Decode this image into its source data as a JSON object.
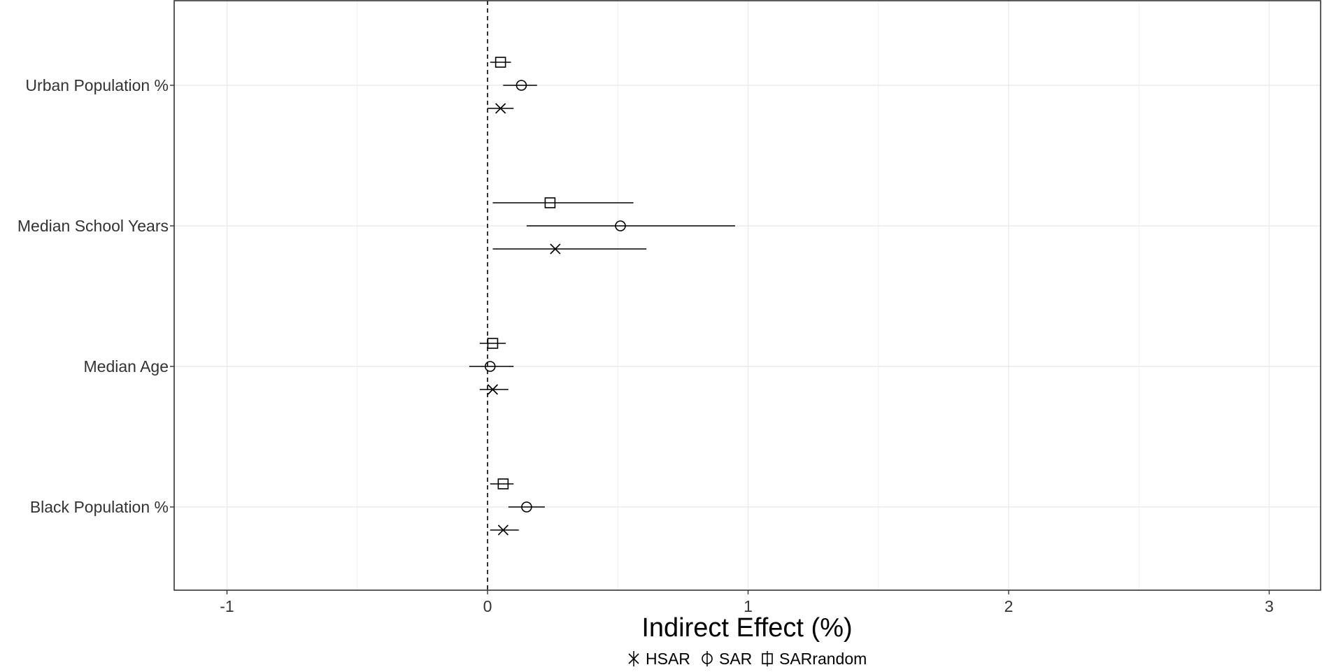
{
  "chart_data": {
    "type": "scatter",
    "subtype": "forest-plot",
    "xlabel": "Indirect Effect (%)",
    "ylabel": "",
    "xlim": [
      -1.2,
      3.2
    ],
    "x_ticks": [
      -1,
      0,
      1,
      2,
      3
    ],
    "x_tick_labels": [
      "-1",
      "0",
      "1",
      "2",
      "3"
    ],
    "grid": true,
    "reference_line": 0,
    "legend_position": "bottom",
    "categories": [
      "Urban Population %",
      "Median School Years",
      "Median Age",
      "Black Population %"
    ],
    "series": [
      {
        "name": "HSAR",
        "marker": "cross",
        "points": [
          {
            "category": "Urban Population %",
            "estimate": 0.05,
            "lower": 0.0,
            "upper": 0.1
          },
          {
            "category": "Median School Years",
            "estimate": 0.26,
            "lower": 0.02,
            "upper": 0.61
          },
          {
            "category": "Median Age",
            "estimate": 0.02,
            "lower": -0.03,
            "upper": 0.08
          },
          {
            "category": "Black Population %",
            "estimate": 0.06,
            "lower": 0.01,
            "upper": 0.12
          }
        ]
      },
      {
        "name": "SAR",
        "marker": "circle",
        "points": [
          {
            "category": "Urban Population %",
            "estimate": 0.13,
            "lower": 0.06,
            "upper": 0.19
          },
          {
            "category": "Median School Years",
            "estimate": 0.51,
            "lower": 0.15,
            "upper": 0.95
          },
          {
            "category": "Median Age",
            "estimate": 0.01,
            "lower": -0.07,
            "upper": 0.1
          },
          {
            "category": "Black Population %",
            "estimate": 0.15,
            "lower": 0.08,
            "upper": 0.22
          }
        ]
      },
      {
        "name": "SARrandom",
        "marker": "square",
        "points": [
          {
            "category": "Urban Population %",
            "estimate": 0.05,
            "lower": 0.01,
            "upper": 0.09
          },
          {
            "category": "Median School Years",
            "estimate": 0.24,
            "lower": 0.02,
            "upper": 0.56
          },
          {
            "category": "Median Age",
            "estimate": 0.02,
            "lower": -0.03,
            "upper": 0.07
          },
          {
            "category": "Black Population %",
            "estimate": 0.06,
            "lower": 0.01,
            "upper": 0.1
          }
        ]
      }
    ]
  }
}
